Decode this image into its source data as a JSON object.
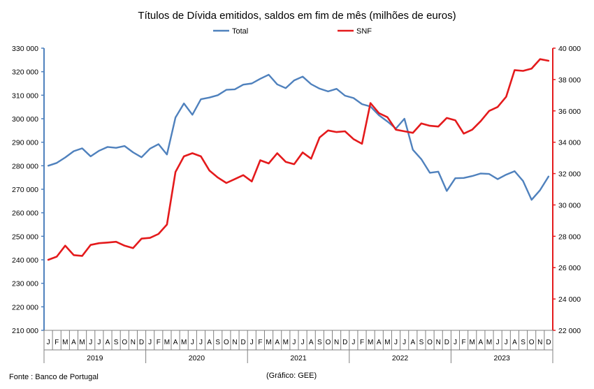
{
  "chart_data": {
    "type": "line",
    "title": "Títulos de Dívida emitidos, saldos em fim de mês  (milhões de euros)",
    "months": [
      "J",
      "F",
      "M",
      "A",
      "M",
      "J",
      "J",
      "A",
      "S",
      "O",
      "N",
      "D"
    ],
    "years": [
      "2019",
      "2020",
      "2021",
      "2022",
      "2023"
    ],
    "left_axis": {
      "ylim": [
        210000,
        330000
      ],
      "tick_labels": [
        "210 000",
        "220 000",
        "230 000",
        "240 000",
        "250 000",
        "260 000",
        "270 000",
        "280 000",
        "290 000",
        "300 000",
        "310 000",
        "320 000",
        "330 000"
      ]
    },
    "right_axis": {
      "ylim": [
        22000,
        40000
      ],
      "tick_labels": [
        "22 000",
        "24 000",
        "26 000",
        "28 000",
        "30 000",
        "32 000",
        "34 000",
        "36 000",
        "38 000",
        "40 000"
      ]
    },
    "series": [
      {
        "name": "Total",
        "axis": "left",
        "color": "#4F81BD",
        "values": [
          280000,
          281200,
          283500,
          286200,
          287400,
          284000,
          286400,
          288000,
          287600,
          288400,
          285700,
          283600,
          287300,
          289200,
          284800,
          300500,
          306500,
          301700,
          308300,
          309000,
          310000,
          312300,
          312500,
          314500,
          315000,
          317000,
          318700,
          314600,
          313000,
          316300,
          317900,
          314700,
          312800,
          311600,
          312700,
          309800,
          308800,
          306200,
          305200,
          301500,
          298800,
          295800,
          300000,
          286800,
          282800,
          277000,
          277500,
          269300,
          274700,
          274800,
          275600,
          276700,
          276500,
          274300,
          276200,
          277700,
          273500,
          265500,
          269600,
          275400
        ]
      },
      {
        "name": "SNF",
        "axis": "right",
        "color": "#E41A1C",
        "values": [
          26500,
          26700,
          27400,
          26800,
          26750,
          27450,
          27560,
          27600,
          27650,
          27400,
          27250,
          27850,
          27900,
          28150,
          28750,
          32100,
          33100,
          33300,
          33100,
          32200,
          31750,
          31400,
          31650,
          31900,
          31500,
          32850,
          32650,
          33300,
          32750,
          32600,
          33350,
          32950,
          34300,
          34750,
          34650,
          34700,
          34200,
          33900,
          36500,
          35850,
          35600,
          34800,
          34700,
          34600,
          35200,
          35050,
          35000,
          35550,
          35400,
          34550,
          34800,
          35350,
          36000,
          36250,
          36900,
          38600,
          38550,
          38700,
          39300,
          39200
        ]
      }
    ],
    "legend_position": "top-center",
    "grid": false
  },
  "footer": {
    "source": "Fonte : Banco de Portugal",
    "credit": "(Gráfico: GEE)"
  }
}
